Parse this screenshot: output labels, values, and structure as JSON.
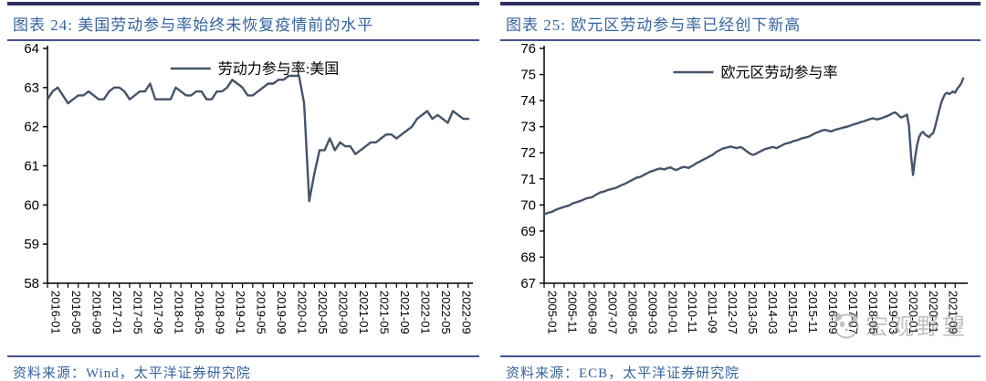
{
  "panels": [
    {
      "title": "图表 24: 美国劳动参与率始终未恢复疫情前的水平",
      "source": "资料来源：Wind，太平洋证券研究院"
    },
    {
      "title": "图表 25: 欧元区劳动参与率已经创下新高",
      "source": "资料来源：ECB，太平洋证券研究院"
    }
  ],
  "watermark": {
    "text": "宏观野望"
  },
  "colors": {
    "thick_rule": "#302F63",
    "thin_rule": "#44528E",
    "title_blue": "#35639E",
    "series_line": "#44546A",
    "axis": "#000000",
    "watermark_gray": "#8f8f8f"
  },
  "chart_data": [
    {
      "type": "line",
      "title": "图表 24: 美国劳动参与率始终未恢复疫情前的水平",
      "xlabel": "",
      "ylabel": "",
      "grid": false,
      "legend_position": "top-center",
      "ylim": [
        58,
        64
      ],
      "ytick_step": 1,
      "line_color": "#44546A",
      "label_every": 4,
      "series": [
        {
          "name": "劳动力参与率:美国"
        }
      ],
      "x_labels": [
        "2016-01",
        "2016-05",
        "2016-09",
        "2017-01",
        "2017-05",
        "2017-09",
        "2018-01",
        "2018-05",
        "2018-09",
        "2019-01",
        "2019-05",
        "2019-09",
        "2020-01",
        "2020-05",
        "2020-09",
        "2021-01",
        "2021-05",
        "2021-09",
        "2022-01",
        "2022-05",
        "2022-09"
      ],
      "values": [
        62.7,
        62.9,
        63.0,
        62.8,
        62.6,
        62.7,
        62.8,
        62.8,
        62.9,
        62.8,
        62.7,
        62.7,
        62.9,
        63.0,
        63.0,
        62.9,
        62.7,
        62.8,
        62.9,
        62.9,
        63.1,
        62.7,
        62.7,
        62.7,
        62.7,
        63.0,
        62.9,
        62.8,
        62.8,
        62.9,
        62.9,
        62.7,
        62.7,
        62.9,
        62.9,
        63.0,
        63.2,
        63.1,
        63.0,
        62.8,
        62.8,
        62.9,
        63.0,
        63.1,
        63.1,
        63.2,
        63.2,
        63.3,
        63.3,
        63.3,
        62.6,
        60.1,
        60.8,
        61.4,
        61.4,
        61.7,
        61.4,
        61.6,
        61.5,
        61.5,
        61.3,
        61.4,
        61.5,
        61.6,
        61.6,
        61.7,
        61.8,
        61.8,
        61.7,
        61.8,
        61.9,
        62.0,
        62.2,
        62.3,
        62.4,
        62.2,
        62.3,
        62.2,
        62.1,
        62.4,
        62.3,
        62.2,
        62.2
      ]
    },
    {
      "type": "line",
      "title": "图表 25: 欧元区劳动参与率已经创下新高",
      "xlabel": "",
      "ylabel": "",
      "grid": false,
      "legend_position": "top-center",
      "ylim": [
        67,
        76
      ],
      "ytick_step": 1,
      "line_color": "#44546A",
      "label_every": 10,
      "series": [
        {
          "name": "欧元区劳动参与率"
        }
      ],
      "x_labels": [
        "2005-01",
        "2005-11",
        "2006-09",
        "2007-07",
        "2008-05",
        "2009-03",
        "2010-01",
        "2010-11",
        "2011-09",
        "2012-07",
        "2013-05",
        "2014-03",
        "2015-01",
        "2015-11",
        "2016-09",
        "2017-07",
        "2018-05",
        "2019-03",
        "2020-01",
        "2020-11",
        "2021-09"
      ],
      "values": [
        69.65,
        69.67,
        69.7,
        69.72,
        69.74,
        69.78,
        69.82,
        69.85,
        69.88,
        69.9,
        69.93,
        69.95,
        69.97,
        70.0,
        70.05,
        70.08,
        70.1,
        70.13,
        70.15,
        70.18,
        70.22,
        70.25,
        70.27,
        70.28,
        70.3,
        70.35,
        70.4,
        70.44,
        70.48,
        70.5,
        70.52,
        70.55,
        70.58,
        70.6,
        70.62,
        70.64,
        70.66,
        70.7,
        70.74,
        70.77,
        70.8,
        70.84,
        70.88,
        70.92,
        70.96,
        71.0,
        71.04,
        71.06,
        71.08,
        71.12,
        71.16,
        71.2,
        71.24,
        71.28,
        71.3,
        71.33,
        71.36,
        71.38,
        71.4,
        71.38,
        71.36,
        71.4,
        71.42,
        71.44,
        71.4,
        71.36,
        71.34,
        71.38,
        71.42,
        71.44,
        71.46,
        71.44,
        71.42,
        71.46,
        71.5,
        71.55,
        71.6,
        71.64,
        71.68,
        71.72,
        71.76,
        71.8,
        71.84,
        71.88,
        71.92,
        71.98,
        72.04,
        72.08,
        72.12,
        72.16,
        72.18,
        72.2,
        72.22,
        72.24,
        72.22,
        72.2,
        72.18,
        72.2,
        72.22,
        72.18,
        72.12,
        72.06,
        72.0,
        71.96,
        71.92,
        71.94,
        71.98,
        72.02,
        72.06,
        72.1,
        72.14,
        72.16,
        72.18,
        72.2,
        72.22,
        72.2,
        72.18,
        72.22,
        72.26,
        72.3,
        72.34,
        72.36,
        72.38,
        72.4,
        72.44,
        72.46,
        72.48,
        72.5,
        72.54,
        72.56,
        72.58,
        72.6,
        72.62,
        72.66,
        72.7,
        72.74,
        72.78,
        72.8,
        72.84,
        72.86,
        72.88,
        72.86,
        72.84,
        72.82,
        72.84,
        72.88,
        72.9,
        72.92,
        72.94,
        72.96,
        72.98,
        73.0,
        73.02,
        73.05,
        73.08,
        73.1,
        73.12,
        73.15,
        73.18,
        73.2,
        73.22,
        73.25,
        73.28,
        73.3,
        73.32,
        73.3,
        73.28,
        73.3,
        73.32,
        73.35,
        73.38,
        73.4,
        73.44,
        73.48,
        73.52,
        73.55,
        73.5,
        73.42,
        73.35,
        73.38,
        73.42,
        73.46,
        73.0,
        71.9,
        71.15,
        71.8,
        72.3,
        72.6,
        72.75,
        72.8,
        72.7,
        72.65,
        72.6,
        72.7,
        72.75,
        73.0,
        73.3,
        73.6,
        73.9,
        74.1,
        74.25,
        74.3,
        74.25,
        74.3,
        74.35,
        74.3,
        74.45,
        74.55,
        74.65,
        74.85
      ]
    }
  ]
}
